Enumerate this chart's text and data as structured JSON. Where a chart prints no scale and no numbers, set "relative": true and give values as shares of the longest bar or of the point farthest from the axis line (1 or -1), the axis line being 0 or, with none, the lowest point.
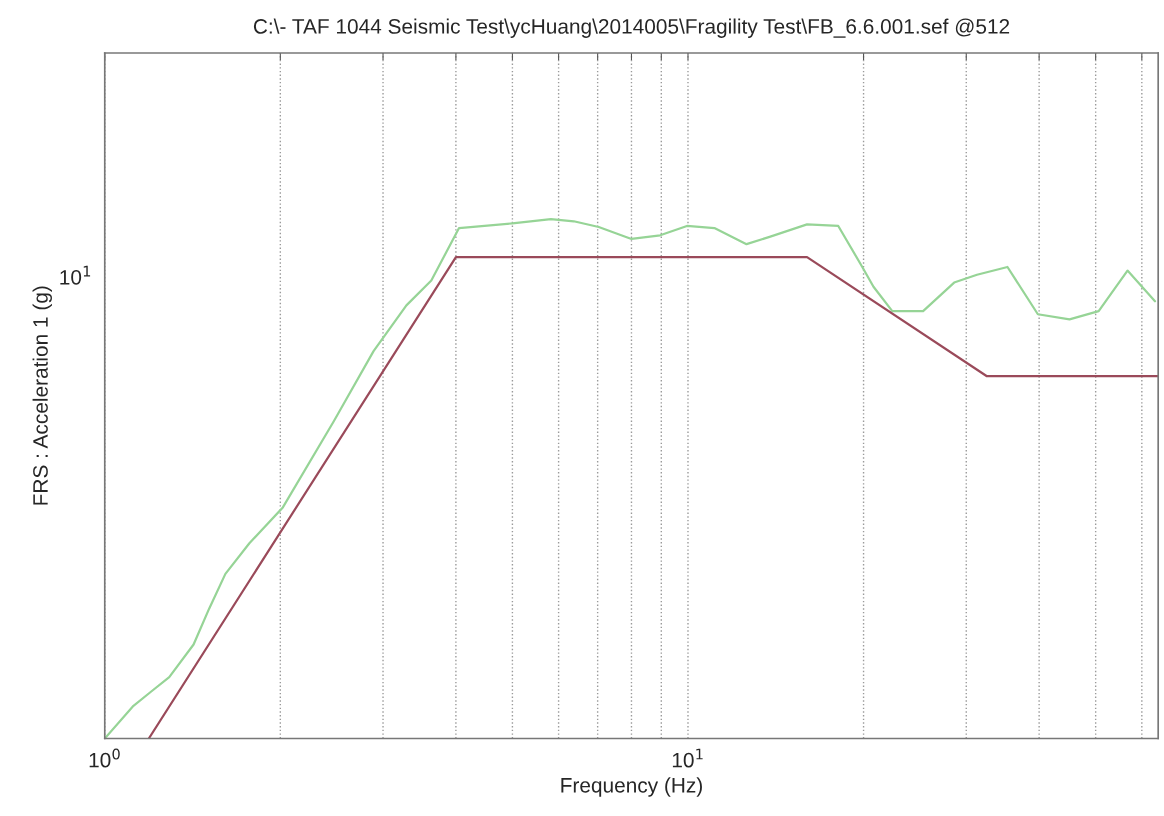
{
  "chart_data": {
    "type": "line",
    "title": "C:\\- TAF 1044 Seismic Test\\ycHuang\\2014005\\Fragility Test\\FB_6.6.001.sef @512",
    "xlabel": "Frequency (Hz)",
    "ylabel": "FRS : Acceleration 1 (g)",
    "log": "x",
    "grid": true,
    "relative": true,
    "xlim": [
      1,
      64
    ],
    "annotations": [
      "10$^{1}$"
    ],
    "xticks": [
      {
        "value": 1,
        "label": "10$^{0}$"
      },
      {
        "value": 2,
        "label": null
      },
      {
        "value": 3,
        "label": null
      },
      {
        "value": 4,
        "label": null
      },
      {
        "value": 5,
        "label": null
      },
      {
        "value": 6,
        "label": null
      },
      {
        "value": 7,
        "label": null
      },
      {
        "value": 8,
        "label": null
      },
      {
        "value": 9,
        "label": null
      },
      {
        "value": 10,
        "label": "10$^{1}$"
      },
      {
        "value": 20,
        "label": null
      },
      {
        "value": 30,
        "label": null
      },
      {
        "value": 40,
        "label": null
      },
      {
        "value": 50,
        "label": null
      },
      {
        "value": 60,
        "label": null
      }
    ],
    "series": [
      {
        "color": "#96d496",
        "x": [
          1.0,
          1.12,
          1.2,
          1.29,
          1.42,
          1.51,
          1.61,
          1.77,
          2.02,
          2.47,
          2.89,
          3.29,
          3.63,
          4.05,
          5.0,
          5.82,
          6.37,
          7.03,
          8.0,
          8.96,
          9.96,
          11.1,
          12.6,
          13.8,
          16.0,
          18.1,
          19.9,
          20.8,
          22.4,
          25.3,
          28.6,
          31.3,
          35.3,
          39.8,
          45.1,
          50.6,
          56.7,
          63.2
        ],
        "values": [
          0,
          0.063,
          0.09,
          0.118,
          0.181,
          0.25,
          0.317,
          0.376,
          0.445,
          0.611,
          0.746,
          0.834,
          0.882,
          0.983,
          0.992,
          1,
          0.996,
          0.985,
          0.962,
          0.969,
          0.987,
          0.983,
          0.952,
          0.966,
          0.99,
          0.987,
          0.908,
          0.87,
          0.823,
          0.823,
          0.878,
          0.893,
          0.908,
          0.817,
          0.807,
          0.823,
          0.901,
          0.842
        ]
      },
      {
        "color": "#9a4a5a",
        "x": [
          1.19,
          4.0,
          16.0,
          32.5,
          64.0
        ],
        "values": [
          0,
          0.927,
          0.927,
          0.698,
          0.698
        ]
      }
    ]
  }
}
